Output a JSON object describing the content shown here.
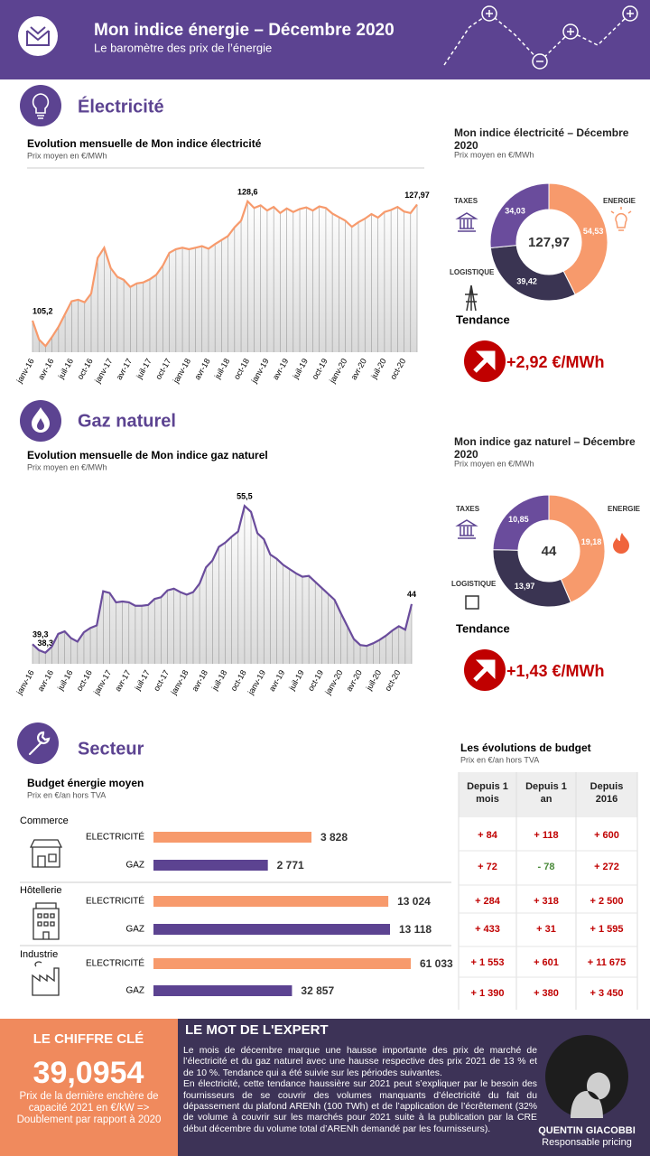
{
  "header": {
    "title": "Mon indice énergie – Décembre 2020",
    "subtitle": "Le baromètre des prix de l’énergie"
  },
  "sections": [
    "Électricité",
    "Gaz naturel",
    "Secteur"
  ],
  "chart_data": [
    {
      "type": "line",
      "title": "Evolution mensuelle de Mon indice électricité",
      "subtitle": "Prix moyen en €/MWh",
      "color": "#f79a6c",
      "categories": [
        "janv-16",
        null,
        null,
        "avr-16",
        null,
        null,
        "juil-16",
        null,
        null,
        "oct-16",
        null,
        null,
        "janv-17",
        null,
        null,
        "avr-17",
        null,
        null,
        "juil-17",
        null,
        null,
        "oct-17",
        null,
        null,
        "janv-18",
        null,
        null,
        "avr-18",
        null,
        null,
        "juil-18",
        null,
        null,
        "oct-18",
        null,
        null,
        "janv-19",
        null,
        null,
        "avr-19",
        null,
        null,
        "juil-19",
        null,
        null,
        "oct-19",
        null,
        null,
        "janv-20",
        null,
        null,
        "avr-20",
        null,
        null,
        "juil-20",
        null,
        null,
        "oct-20",
        null,
        null
      ],
      "values": [
        105.2,
        101.5,
        100.2,
        102,
        104,
        106.5,
        109,
        109.3,
        108.8,
        110.5,
        117.5,
        119.5,
        115.5,
        113.8,
        113.2,
        111.8,
        112.5,
        112.7,
        113.3,
        114.2,
        116,
        118.5,
        119.2,
        119.5,
        119.2,
        119.5,
        119.8,
        119.3,
        120.2,
        121,
        121.8,
        123.5,
        124.8,
        128.6,
        127.3,
        127.8,
        126.8,
        127.5,
        126.3,
        127.2,
        126.5,
        127.1,
        127.4,
        126.8,
        127.6,
        127.3,
        126.2,
        125.5,
        124.8,
        123.6,
        124.5,
        125.2,
        126.1,
        125.4,
        126.5,
        126.9,
        127.5,
        126.6,
        126.3,
        127.97
      ],
      "value_labels": [
        "105,2",
        null,
        null,
        null,
        null,
        null,
        null,
        null,
        null,
        null,
        null,
        null,
        null,
        null,
        null,
        null,
        null,
        null,
        null,
        null,
        null,
        null,
        null,
        null,
        null,
        null,
        null,
        null,
        null,
        null,
        null,
        null,
        null,
        "128,6",
        null,
        null,
        null,
        null,
        null,
        null,
        null,
        null,
        null,
        null,
        null,
        null,
        null,
        null,
        null,
        null,
        null,
        null,
        null,
        null,
        null,
        null,
        null,
        null,
        null,
        "127,97"
      ],
      "ylim": [
        99,
        130
      ]
    },
    {
      "type": "pie",
      "title": "Mon indice électricité – Décembre 2020",
      "subtitle": "Prix moyen en €/MWh",
      "categories": [
        "ENERGIE",
        "LOGISTIQUE",
        "TAXES"
      ],
      "values": [
        54.53,
        39.42,
        34.03
      ],
      "value_labels": [
        "54,53",
        "39,42",
        "34,03"
      ],
      "colors": [
        "#f79a6c",
        "#3a3452",
        "#6a4c9c"
      ],
      "total": 127.97,
      "total_label": "127,97",
      "trend_title": "Tendance",
      "trend": {
        "value": 2.92,
        "label": "+2,92 €/MWh"
      }
    },
    {
      "type": "line",
      "title": "Evolution mensuelle de Mon indice gaz naturel",
      "subtitle": "Prix moyen en €/MWh",
      "color": "#6a4c9c",
      "categories": [
        "janv-16",
        null,
        null,
        "avr-16",
        null,
        null,
        "juil-16",
        null,
        null,
        "oct-16",
        null,
        null,
        "janv-17",
        null,
        null,
        "avr-17",
        null,
        null,
        "juil-17",
        null,
        null,
        "oct-17",
        null,
        null,
        "janv-18",
        null,
        null,
        "avr-18",
        null,
        null,
        "juil-18",
        null,
        null,
        "oct-18",
        null,
        null,
        "janv-19",
        null,
        null,
        "avr-19",
        null,
        null,
        "juil-19",
        null,
        null,
        "oct-19",
        null,
        null,
        "janv-20",
        null,
        null,
        "avr-20",
        null,
        null,
        "juil-20",
        null,
        null,
        "oct-20",
        null,
        null
      ],
      "values": [
        39.3,
        38.6,
        38.3,
        39,
        40.5,
        40.8,
        40,
        39.6,
        40.7,
        41.2,
        41.5,
        45.5,
        45.3,
        44.2,
        44.3,
        44.2,
        43.8,
        43.8,
        43.9,
        44.6,
        44.8,
        45.6,
        45.8,
        45.4,
        45.1,
        45.4,
        46.4,
        48.3,
        49.1,
        50.7,
        51.2,
        51.9,
        52.5,
        55.5,
        54.8,
        52.3,
        51.6,
        49.8,
        49.3,
        48.6,
        48.1,
        47.6,
        47.2,
        47.3,
        46.6,
        45.9,
        45.2,
        44.5,
        42.9,
        41.4,
        39.9,
        39.2,
        39.1,
        39.4,
        39.8,
        40.3,
        40.9,
        41.4,
        41,
        44
      ],
      "value_labels": [
        "39,3",
        null,
        "38,3",
        null,
        null,
        null,
        null,
        null,
        null,
        null,
        null,
        null,
        null,
        null,
        null,
        null,
        null,
        null,
        null,
        null,
        null,
        null,
        null,
        null,
        null,
        null,
        null,
        null,
        null,
        null,
        null,
        null,
        null,
        "55,5",
        null,
        null,
        null,
        null,
        null,
        null,
        null,
        null,
        null,
        null,
        null,
        null,
        null,
        null,
        null,
        null,
        null,
        null,
        null,
        null,
        null,
        null,
        null,
        null,
        null,
        "44"
      ],
      "ylim": [
        37,
        57
      ]
    },
    {
      "type": "pie",
      "title": "Mon indice gaz naturel – Décembre 2020",
      "subtitle": "Prix moyen en €/MWh",
      "categories": [
        "ENERGIE",
        "LOGISTIQUE",
        "TAXES"
      ],
      "values": [
        19.18,
        13.97,
        10.85
      ],
      "value_labels": [
        "19,18",
        "13,97",
        "10,85"
      ],
      "colors": [
        "#f79a6c",
        "#3a3452",
        "#6a4c9c"
      ],
      "total": 44,
      "trend_title": "Tendance",
      "trend": {
        "value": 1.43,
        "label": "+1,43 €/MWh"
      }
    },
    {
      "type": "bar",
      "title": "Budget énergie moyen",
      "subtitle": "Prix en €/an hors TVA",
      "categories": [
        "Commerce",
        "Hôtellerie",
        "Industrie"
      ],
      "series": [
        {
          "name": "ELECTRICITÉ",
          "color": "#f79a6c",
          "values": [
            3828,
            13024,
            61033
          ],
          "value_labels": [
            "3 828",
            "13 024",
            "61 033"
          ]
        },
        {
          "name": "GAZ",
          "color": "#5c4391",
          "values": [
            2771,
            13118,
            32857
          ],
          "value_labels": [
            "2 771",
            "13 118",
            "32 857"
          ]
        }
      ]
    }
  ],
  "budget_table": {
    "title": "Les évolutions de budget",
    "subtitle": "Prix en €/an hors TVA",
    "columns": [
      "Depuis 1 mois",
      "Depuis 1 an",
      "Depuis 2016"
    ],
    "rows": [
      [
        "+ 84",
        "+ 118",
        "+ 600"
      ],
      [
        "+ 72",
        "- 78",
        "+ 272"
      ],
      [
        "+ 284",
        "+ 318",
        "+ 2 500"
      ],
      [
        "+ 433",
        "+ 31",
        "+ 1 595"
      ],
      [
        "+ 1 553",
        "+ 601",
        "+ 11 675"
      ],
      [
        "+ 1 390",
        "+ 380",
        "+ 3 450"
      ]
    ]
  },
  "key_figure": {
    "title": "LE CHIFFRE CLÉ",
    "value": "39,0954",
    "note": "Prix de la dernière enchère de capacité 2021 en €/kW => Doublement par rapport à 2020"
  },
  "expert": {
    "title": "LE MOT DE L'EXPERT",
    "paragraphs": [
      "Le mois de décembre marque une hausse importante des prix de marché de l’électricité et du gaz naturel avec une hausse respective des prix 2021 de 13 % et de 10 %. Tendance qui a été suivie sur les périodes suivantes.",
      "En électricité, cette tendance haussière sur 2021 peut s’expliquer par le besoin des fournisseurs de se couvrir des volumes manquants d’électricité du fait du dépassement du plafond ARENh (100 TWh) et de l’application de l’écrêtement (32% de volume à couvrir sur les marchés pour 2021 suite à la publication par la CRE début décembre du volume total d’ARENh demandé par les fournisseurs)."
    ],
    "name": "QUENTIN GIACOBBI",
    "role": "Responsable pricing"
  }
}
